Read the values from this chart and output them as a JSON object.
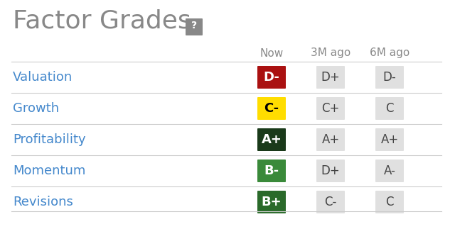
{
  "title": "Factor Grades",
  "bg_color": "#ffffff",
  "title_color": "#888888",
  "title_fontsize": 26,
  "header_labels": [
    "Now",
    "3M ago",
    "6M ago"
  ],
  "header_color": "#888888",
  "header_fontsize": 11,
  "rows": [
    {
      "label": "Valuation",
      "grades": [
        "D-",
        "D+",
        "D-"
      ],
      "now_color": "#aa1111",
      "now_text_color": "#ffffff",
      "other_color": "#e0e0e0",
      "other_text_color": "#444444"
    },
    {
      "label": "Growth",
      "grades": [
        "C-",
        "C+",
        "C"
      ],
      "now_color": "#ffdd00",
      "now_text_color": "#000000",
      "other_color": "#e0e0e0",
      "other_text_color": "#444444"
    },
    {
      "label": "Profitability",
      "grades": [
        "A+",
        "A+",
        "A+"
      ],
      "now_color": "#1a3a1a",
      "now_text_color": "#ffffff",
      "other_color": "#e0e0e0",
      "other_text_color": "#444444"
    },
    {
      "label": "Momentum",
      "grades": [
        "B-",
        "D+",
        "A-"
      ],
      "now_color": "#3a8a3a",
      "now_text_color": "#ffffff",
      "other_color": "#e0e0e0",
      "other_text_color": "#444444"
    },
    {
      "label": "Revisions",
      "grades": [
        "B+",
        "C-",
        "C"
      ],
      "now_color": "#2a6a2a",
      "now_text_color": "#ffffff",
      "other_color": "#e0e0e0",
      "other_text_color": "#444444"
    }
  ],
  "label_color": "#4488cc",
  "label_fontsize": 13,
  "grade_fontsize": 12,
  "question_mark_color": "#777777",
  "question_mark_bg": "#888888",
  "divider_color": "#cccccc"
}
